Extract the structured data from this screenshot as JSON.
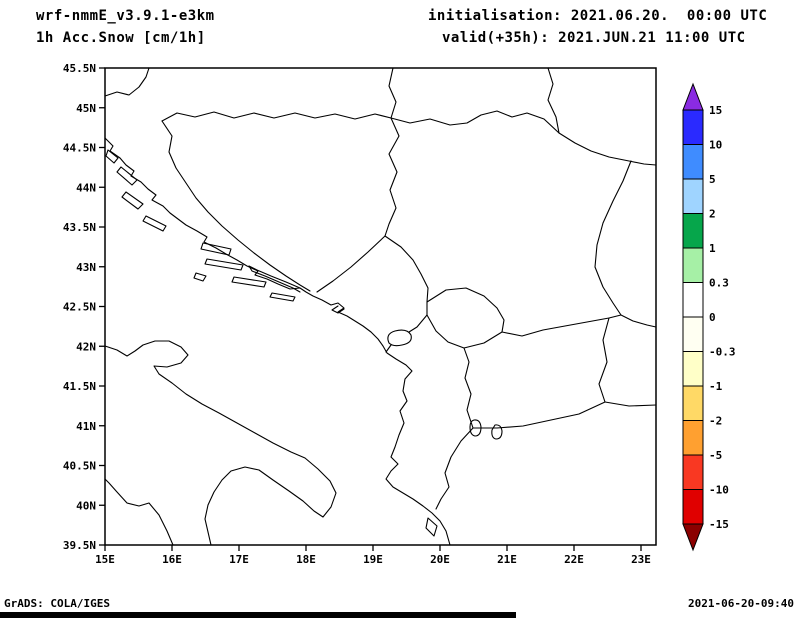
{
  "header": {
    "model": "wrf-nmmE_v3.9.1-e3km",
    "variable": "1h Acc.Snow [cm/1h]",
    "init_label": "initialisation: 2021.06.20.  00:00 UTC",
    "valid_label": "valid(+35h): 2021.JUN.21 11:00 UTC"
  },
  "footer": {
    "grads_credit": "GrADS: COLA/IGES",
    "timestamp": "2021-06-20-09:40"
  },
  "chart_data": {
    "type": "map",
    "title": "1h Acc.Snow [cm/1h]",
    "model_run": "wrf-nmmE_v3.9.1-e3km",
    "initialisation": "2021.06.20 00:00 UTC",
    "valid": "2021.JUN.21 11:00 UTC (+35h)",
    "region": "Adriatic / Balkans",
    "lon_range": [
      15,
      23.2
    ],
    "lat_range": [
      39.5,
      45.5
    ],
    "grid": false,
    "lon_ticks": {
      "values": [
        15,
        16,
        17,
        18,
        19,
        20,
        21,
        22,
        23
      ],
      "labels": [
        "15E",
        "16E",
        "17E",
        "18E",
        "19E",
        "20E",
        "21E",
        "22E",
        "23E"
      ]
    },
    "lat_ticks": {
      "values": [
        45.5,
        45,
        44.5,
        44,
        43.5,
        43,
        42.5,
        42,
        41.5,
        41,
        40.5,
        40,
        39.5
      ],
      "labels": [
        "45.5N",
        "45N",
        "44.5N",
        "44N",
        "43.5N",
        "43N",
        "42.5N",
        "42N",
        "41.5N",
        "41N",
        "40.5N",
        "40N",
        "39.5N"
      ]
    },
    "colorbar": {
      "units": "cm/1h",
      "position": "right",
      "boundary_labels": [
        "15",
        "10",
        "5",
        "2",
        "1",
        "0.3",
        "0",
        "-0.3",
        "-1",
        "-2",
        "-5",
        "-10",
        "-15"
      ],
      "colors": [
        "#8a2be2",
        "#2a2aff",
        "#3f8cff",
        "#9fd4ff",
        "#06a64b",
        "#a6f0a6",
        "#ffffff",
        "#fffff2",
        "#ffffc8",
        "#ffd966",
        "#ffa030",
        "#f93822",
        "#e00000",
        "#8b0000"
      ]
    },
    "shaded_field": "no snow accumulation shaded anywhere in the domain (field everywhere in the 0 class, map area all white)"
  }
}
